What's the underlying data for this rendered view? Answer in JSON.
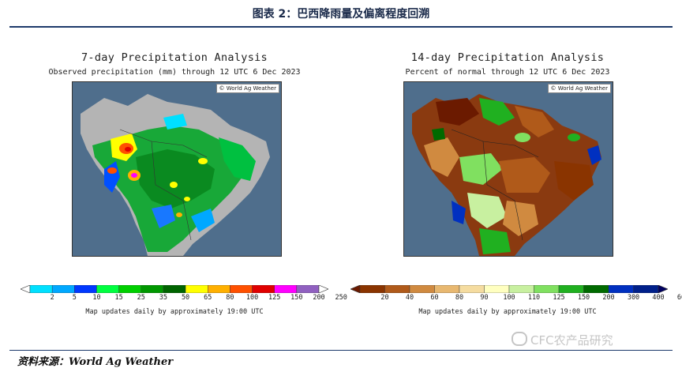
{
  "header": {
    "title": "图表 2：巴西降雨量及偏离程度回溯"
  },
  "panels": [
    {
      "title": "7-day Precipitation Analysis",
      "subtitle": "Observed precipitation (mm) through 12 UTC 6 Dec 2023",
      "credit": "© World Ag Weather",
      "legend_ticks": [
        "2",
        "5",
        "10",
        "15",
        "25",
        "35",
        "50",
        "65",
        "80",
        "100",
        "125",
        "150",
        "200",
        "250"
      ],
      "legend_colors": [
        "#ffffff",
        "#00e0ff",
        "#00a8ff",
        "#0038ff",
        "#00ff40",
        "#00d000",
        "#009800",
        "#006400",
        "#ffff00",
        "#ffb000",
        "#ff5000",
        "#e00000",
        "#ff00ff",
        "#9060c0",
        "#ffffff"
      ],
      "update_note": "Map updates daily by approximately 19:00 UTC"
    },
    {
      "title": "14-day Precipitation Analysis",
      "subtitle": "Percent of normal through 12 UTC 6 Dec 2023",
      "credit": "© World Ag Weather",
      "legend_ticks": [
        "20",
        "40",
        "60",
        "80",
        "90",
        "100",
        "110",
        "125",
        "150",
        "200",
        "300",
        "400",
        "600"
      ],
      "legend_colors": [
        "#6b1a00",
        "#8a3400",
        "#b05a1a",
        "#d08a40",
        "#e8b870",
        "#f5dca0",
        "#ffffc0",
        "#c8f0a0",
        "#80e060",
        "#20b020",
        "#006a00",
        "#0030c0",
        "#00208a",
        "#000060"
      ],
      "update_note": "Map updates daily by approximately 19:00 UTC"
    }
  ],
  "footer": {
    "source": "资料来源：World Ag Weather"
  },
  "watermark": {
    "text": "CFC农产品研究"
  }
}
